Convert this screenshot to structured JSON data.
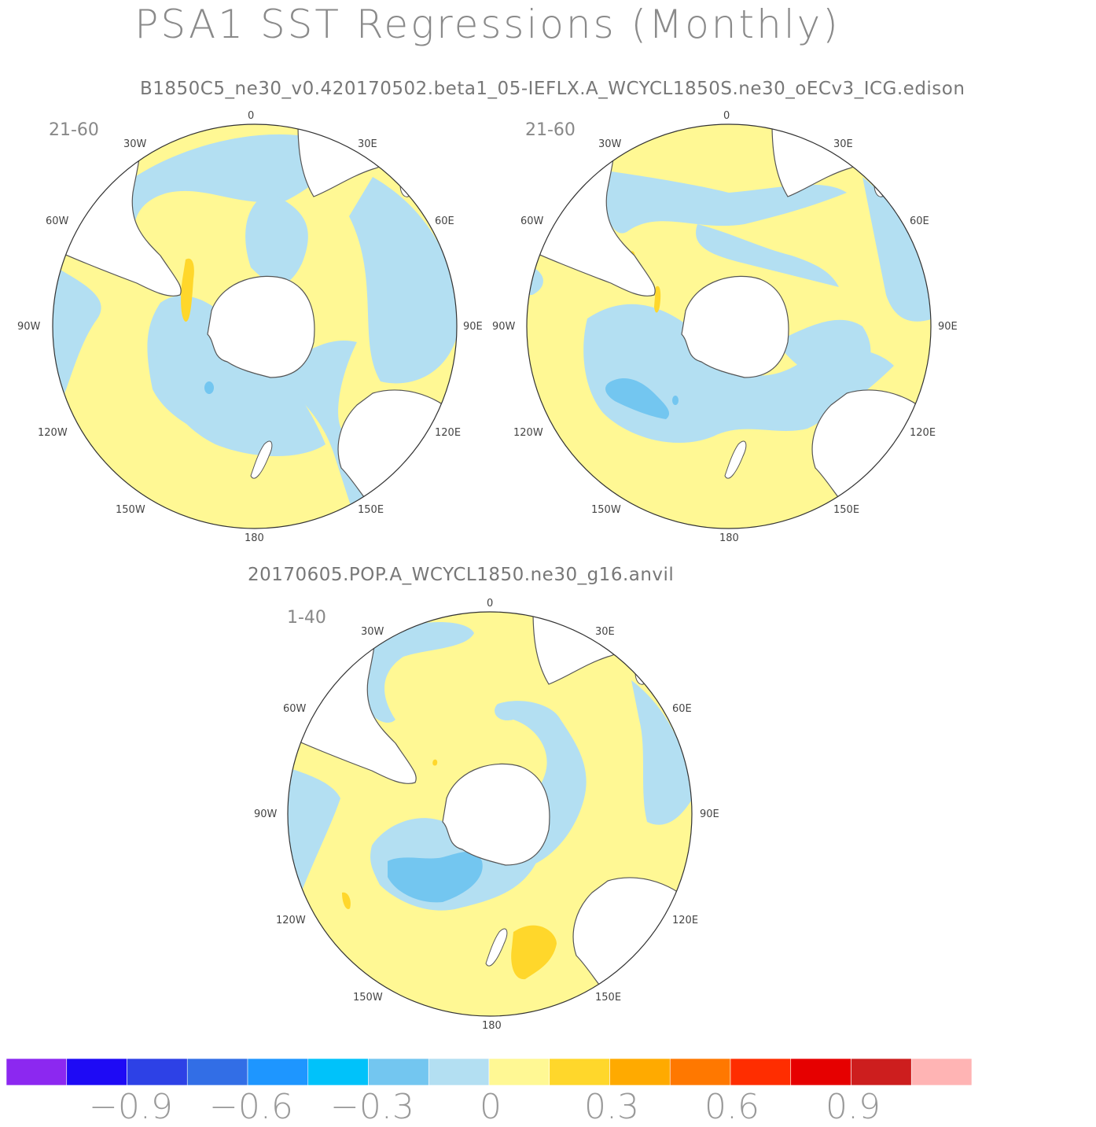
{
  "figure": {
    "title": "PSA1  SST  Regressions  (Monthly)",
    "case_top": "B1850C5_ne30_v0.420170502.beta1_05-IEFLX.A_WCYCL1850S.ne30_oECv3_ICG.edison",
    "case_bottom": "20170605.POP.A_WCYCL1850.ne30_g16.anvil"
  },
  "panels": [
    {
      "id": "left",
      "years": "21-60"
    },
    {
      "id": "right",
      "years": "21-60"
    },
    {
      "id": "bottom",
      "years": "1-40"
    }
  ],
  "lon_labels": {
    "top": "0",
    "p30e": "30E",
    "p60e": "60E",
    "p90e": "90E",
    "p120e": "120E",
    "p150e": "150E",
    "bottom": "180",
    "p150w": "150W",
    "p120w": "120W",
    "p90w": "90W",
    "p60w": "60W",
    "p30w": "30W"
  },
  "colors": {
    "land": "#ffffff",
    "coast": "#555555",
    "pos_weak": "#fff894",
    "pos_mid": "#ffd72b",
    "neg_weak": "#b3dff2",
    "neg_mid": "#73c6f0"
  },
  "colorbar": {
    "colors": [
      "#8c28f0",
      "#1e0af5",
      "#2d41e6",
      "#326ee6",
      "#1e96ff",
      "#00c2fa",
      "#73c6f0",
      "#b3dff2",
      "#fff894",
      "#ffd72b",
      "#ffaa00",
      "#ff7800",
      "#ff2d00",
      "#e60000",
      "#cd1e1e",
      "#ffb4b4"
    ],
    "tick_labels": [
      "-0.9",
      "-0.6",
      "-0.3",
      "0",
      "0.3",
      "0.6",
      "0.9"
    ]
  }
}
